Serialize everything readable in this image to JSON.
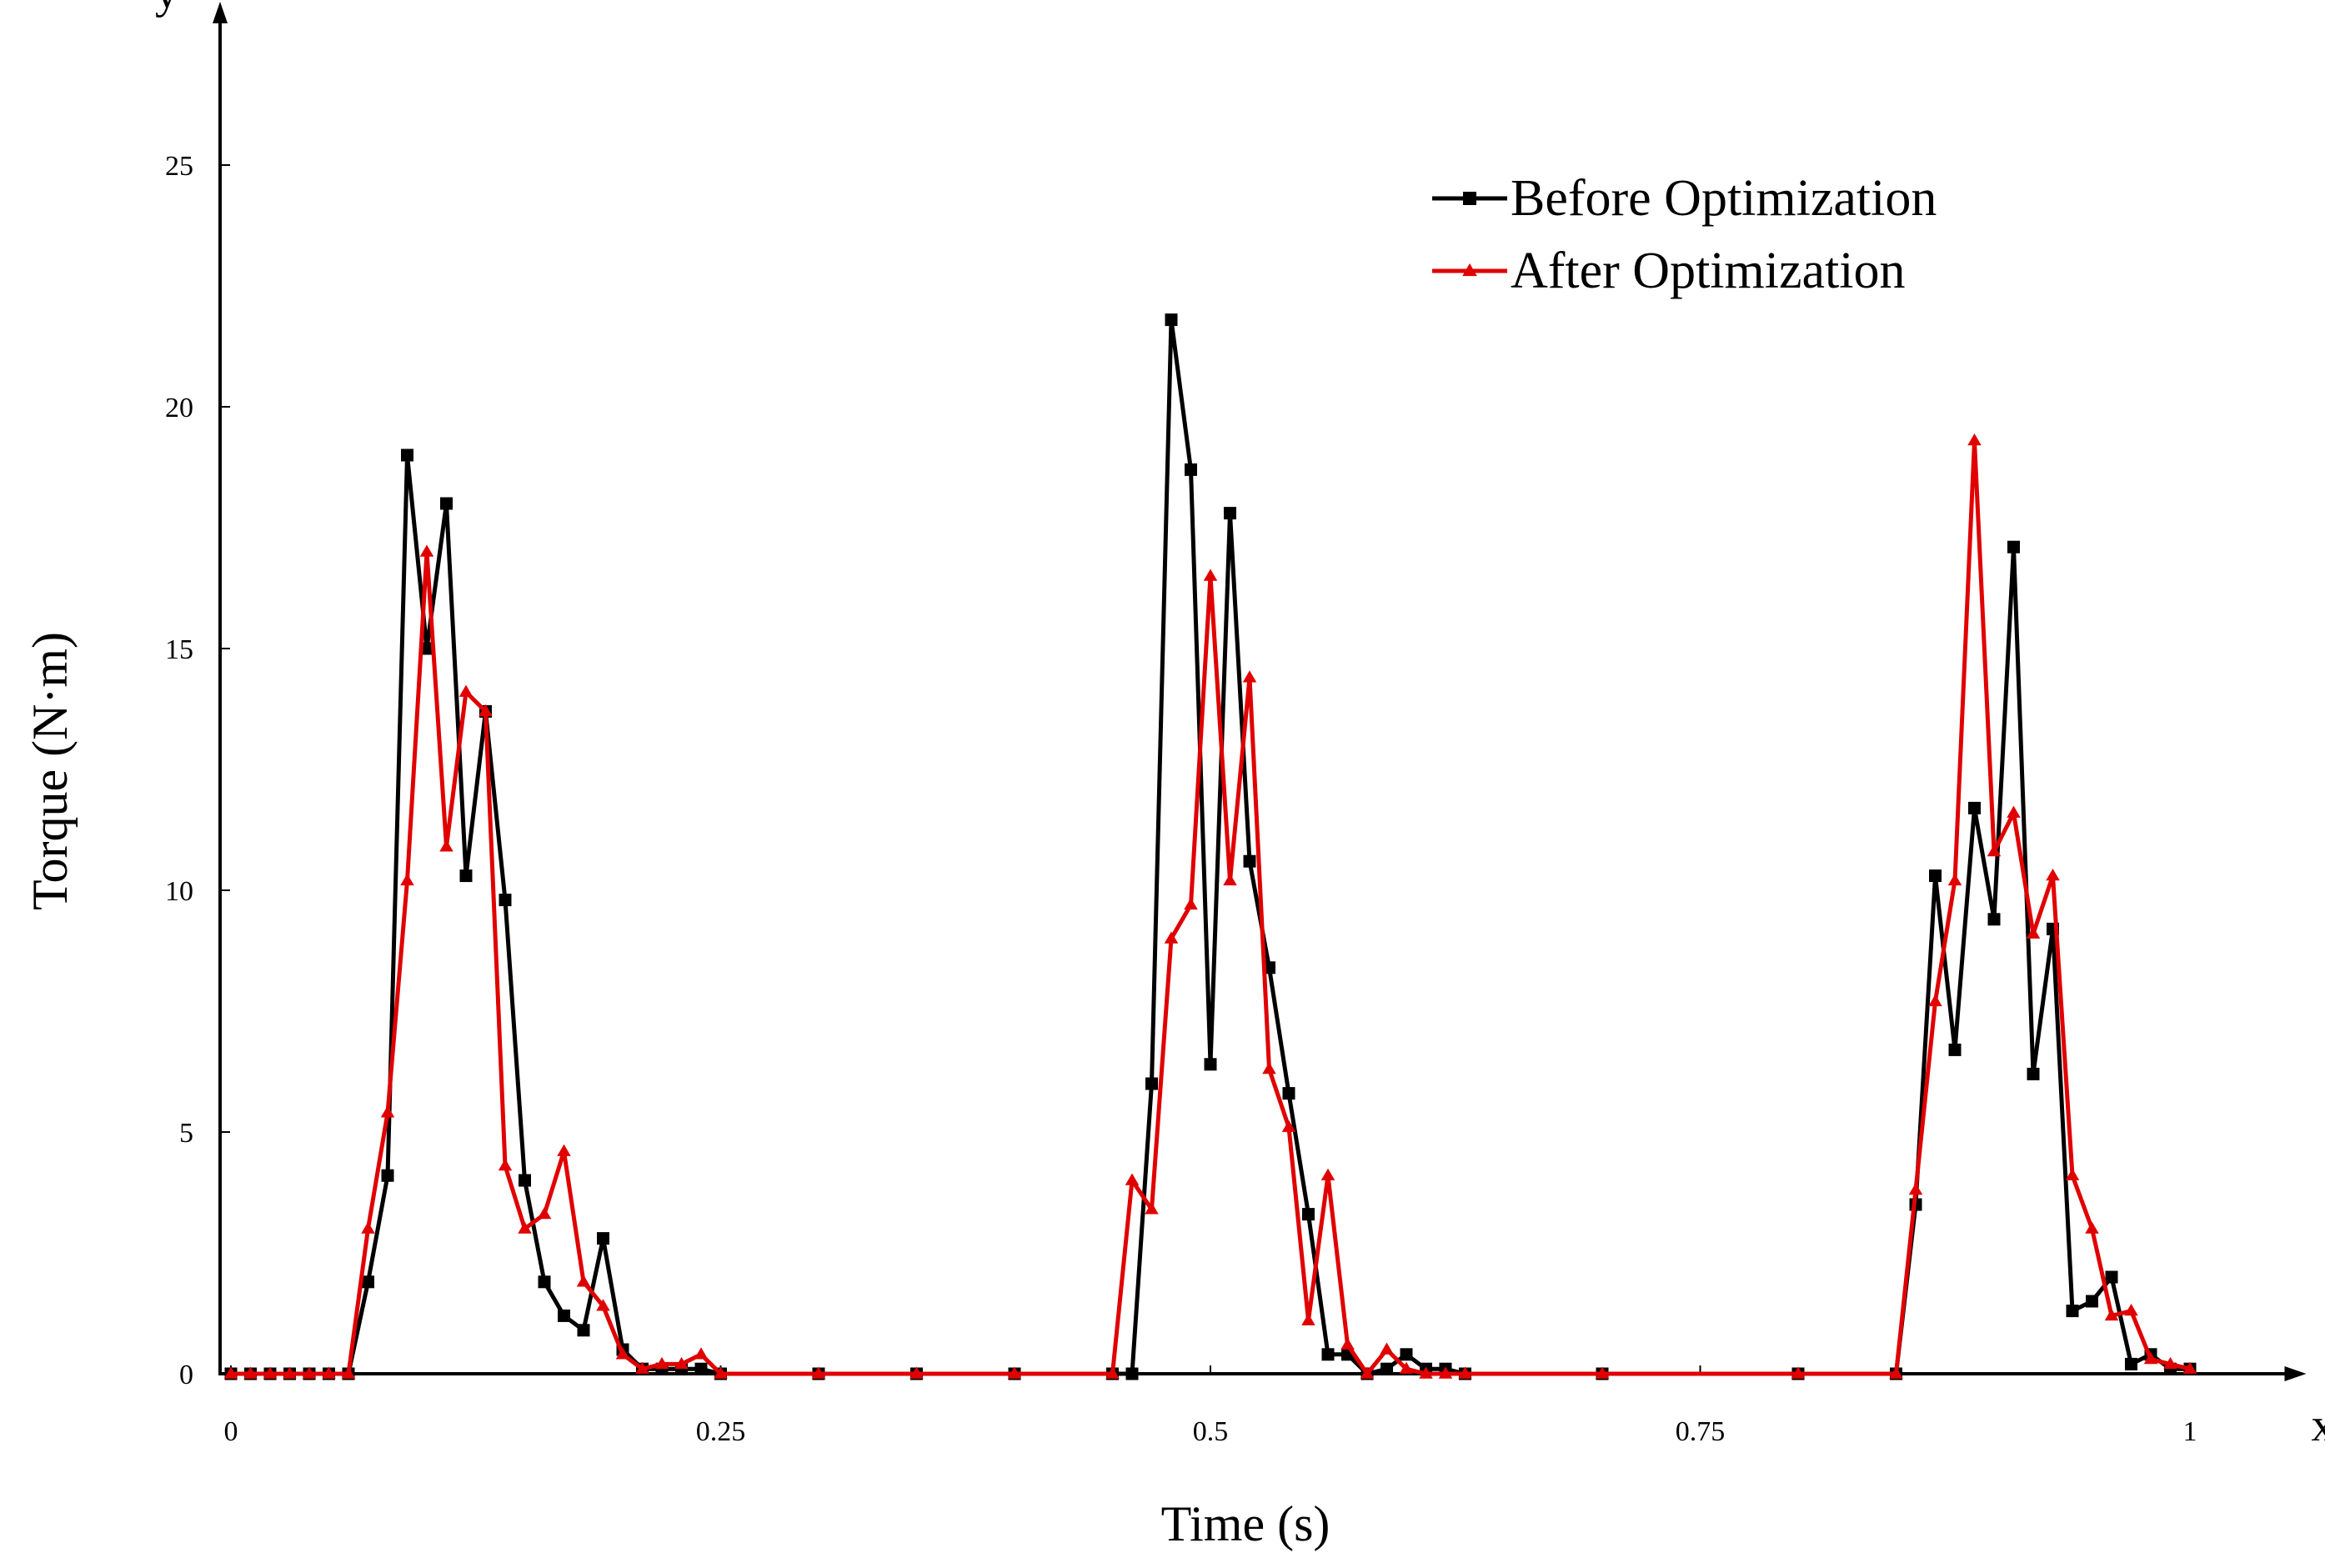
{
  "chart_data": {
    "type": "line",
    "title": "",
    "xlabel": "Time (s)",
    "ylabel": "Torque (N·m)",
    "x_axis_letter": "x",
    "y_axis_letter": "y",
    "xlim": [
      0,
      1.05
    ],
    "ylim": [
      0,
      28
    ],
    "xticks": [
      0,
      0.25,
      0.5,
      0.75,
      1
    ],
    "xtick_labels": [
      "0",
      "0.25",
      "0.5",
      "0.75",
      "1"
    ],
    "yticks": [
      0,
      5,
      10,
      15,
      20,
      25
    ],
    "ytick_labels": [
      "0",
      "5",
      "10",
      "15",
      "20",
      "25"
    ],
    "grid": false,
    "legend_position": "top-right",
    "series": [
      {
        "name": "Before Optimization",
        "color": "#000000",
        "marker": "square",
        "x": [
          0,
          0.01,
          0.02,
          0.03,
          0.04,
          0.05,
          0.06,
          0.07,
          0.08,
          0.09,
          0.1,
          0.11,
          0.12,
          0.13,
          0.14,
          0.15,
          0.16,
          0.17,
          0.18,
          0.19,
          0.2,
          0.21,
          0.22,
          0.23,
          0.24,
          0.25,
          0.3,
          0.35,
          0.4,
          0.45,
          0.46,
          0.47,
          0.48,
          0.49,
          0.5,
          0.51,
          0.52,
          0.53,
          0.54,
          0.55,
          0.56,
          0.57,
          0.58,
          0.59,
          0.6,
          0.61,
          0.62,
          0.63,
          0.7,
          0.8,
          0.85,
          0.86,
          0.87,
          0.88,
          0.89,
          0.9,
          0.91,
          0.92,
          0.93,
          0.94,
          0.95,
          0.96,
          0.97,
          0.98,
          0.99,
          1.0
        ],
        "y": [
          0,
          0,
          0,
          0,
          0,
          0,
          0,
          1.9,
          4.1,
          19.0,
          15.0,
          18.0,
          10.3,
          13.7,
          9.8,
          4.0,
          1.9,
          1.2,
          0.9,
          2.8,
          0.5,
          0.1,
          0.1,
          0.1,
          0.1,
          0,
          0,
          0,
          0,
          0,
          0,
          6.0,
          21.8,
          18.7,
          6.4,
          17.8,
          10.6,
          8.4,
          5.8,
          3.3,
          0.4,
          0.4,
          0,
          0.1,
          0.4,
          0.1,
          0.1,
          0,
          0,
          0,
          0,
          3.5,
          10.3,
          6.7,
          11.7,
          9.4,
          17.1,
          6.2,
          9.2,
          1.3,
          1.5,
          2.0,
          0.2,
          0.4,
          0.1,
          0.1
        ]
      },
      {
        "name": "After Optimization",
        "color": "#e00000",
        "marker": "triangle",
        "x": [
          0,
          0.01,
          0.02,
          0.03,
          0.04,
          0.05,
          0.06,
          0.07,
          0.08,
          0.09,
          0.1,
          0.11,
          0.12,
          0.13,
          0.14,
          0.15,
          0.16,
          0.17,
          0.18,
          0.19,
          0.2,
          0.21,
          0.22,
          0.23,
          0.24,
          0.25,
          0.3,
          0.35,
          0.4,
          0.45,
          0.46,
          0.47,
          0.48,
          0.49,
          0.5,
          0.51,
          0.52,
          0.53,
          0.54,
          0.55,
          0.56,
          0.57,
          0.58,
          0.59,
          0.6,
          0.61,
          0.62,
          0.63,
          0.7,
          0.8,
          0.85,
          0.86,
          0.87,
          0.88,
          0.89,
          0.9,
          0.91,
          0.92,
          0.93,
          0.94,
          0.95,
          0.96,
          0.97,
          0.98,
          0.99,
          1.0
        ],
        "y": [
          0,
          0,
          0,
          0,
          0,
          0,
          0,
          3.0,
          5.4,
          10.2,
          17.0,
          10.9,
          14.1,
          13.7,
          4.3,
          3.0,
          3.3,
          4.6,
          1.9,
          1.4,
          0.4,
          0.1,
          0.2,
          0.2,
          0.4,
          0,
          0,
          0,
          0,
          0,
          4.0,
          3.4,
          9.0,
          9.7,
          16.5,
          10.2,
          14.4,
          6.3,
          5.1,
          1.1,
          4.1,
          0.6,
          0,
          0.5,
          0.1,
          0,
          0,
          0,
          0,
          0,
          0,
          3.8,
          7.7,
          10.2,
          19.3,
          10.8,
          11.6,
          9.1,
          10.3,
          4.1,
          3.0,
          1.2,
          1.3,
          0.3,
          0.2,
          0.1
        ]
      }
    ]
  }
}
